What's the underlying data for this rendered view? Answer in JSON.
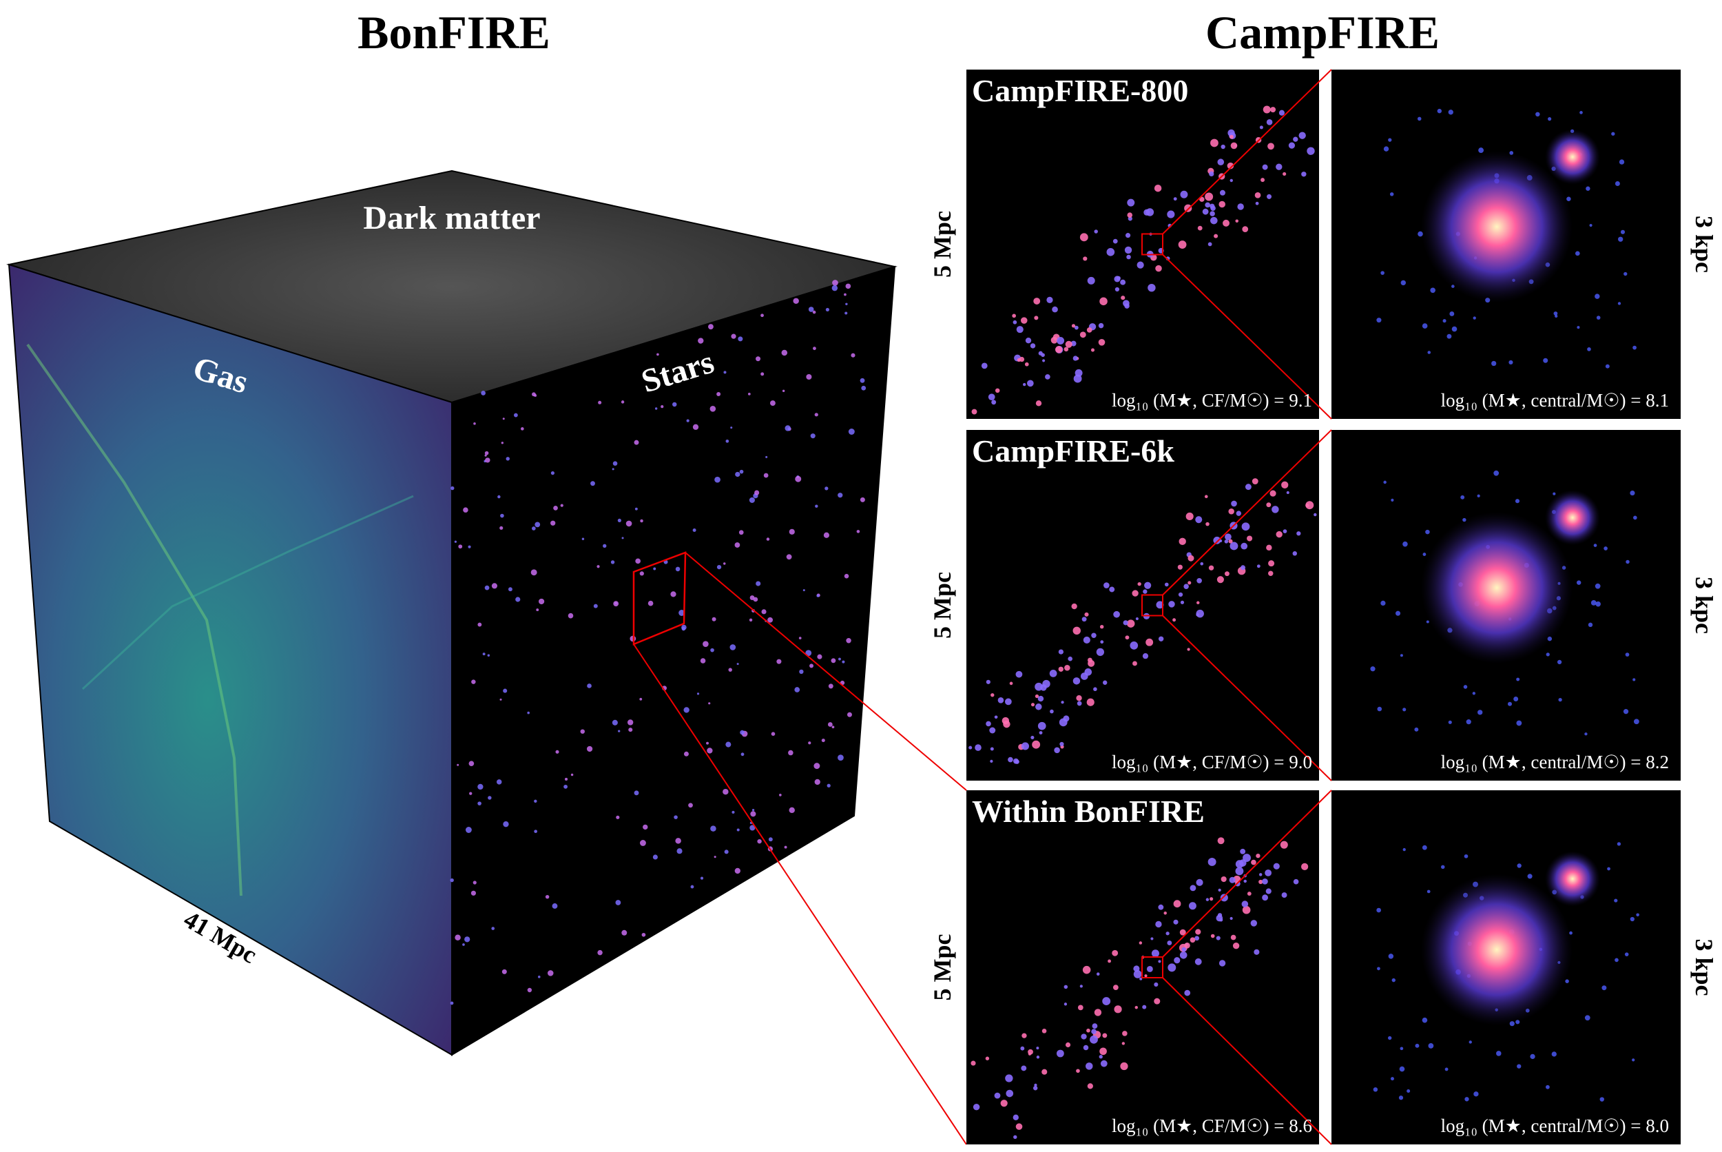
{
  "left": {
    "title": "BonFIRE",
    "faces": {
      "top": "Dark matter",
      "front": "Gas",
      "side": "Stars"
    },
    "scale": "41 Mpc"
  },
  "right": {
    "title": "CampFIRE",
    "rows": [
      {
        "name": "CampFIRE-800",
        "large_scale": "5 Mpc",
        "small_scale": "3 kpc",
        "total_mass": "log₁₀ (M★, CF/M☉) = 9.1",
        "central_mass": "log₁₀ (M★, central/M☉) = 8.1"
      },
      {
        "name": "CampFIRE-6k",
        "large_scale": "5 Mpc",
        "small_scale": "3 kpc",
        "total_mass": "log₁₀ (M★, CF/M☉) = 9.0",
        "central_mass": "log₁₀ (M★, central/M☉) = 8.2"
      },
      {
        "name": "Within BonFIRE",
        "large_scale": "5 Mpc",
        "small_scale": "3 kpc",
        "total_mass": "log₁₀ (M★, CF/M☉) = 8.6",
        "central_mass": "log₁₀ (M★, central/M☉) = 8.0"
      }
    ]
  }
}
